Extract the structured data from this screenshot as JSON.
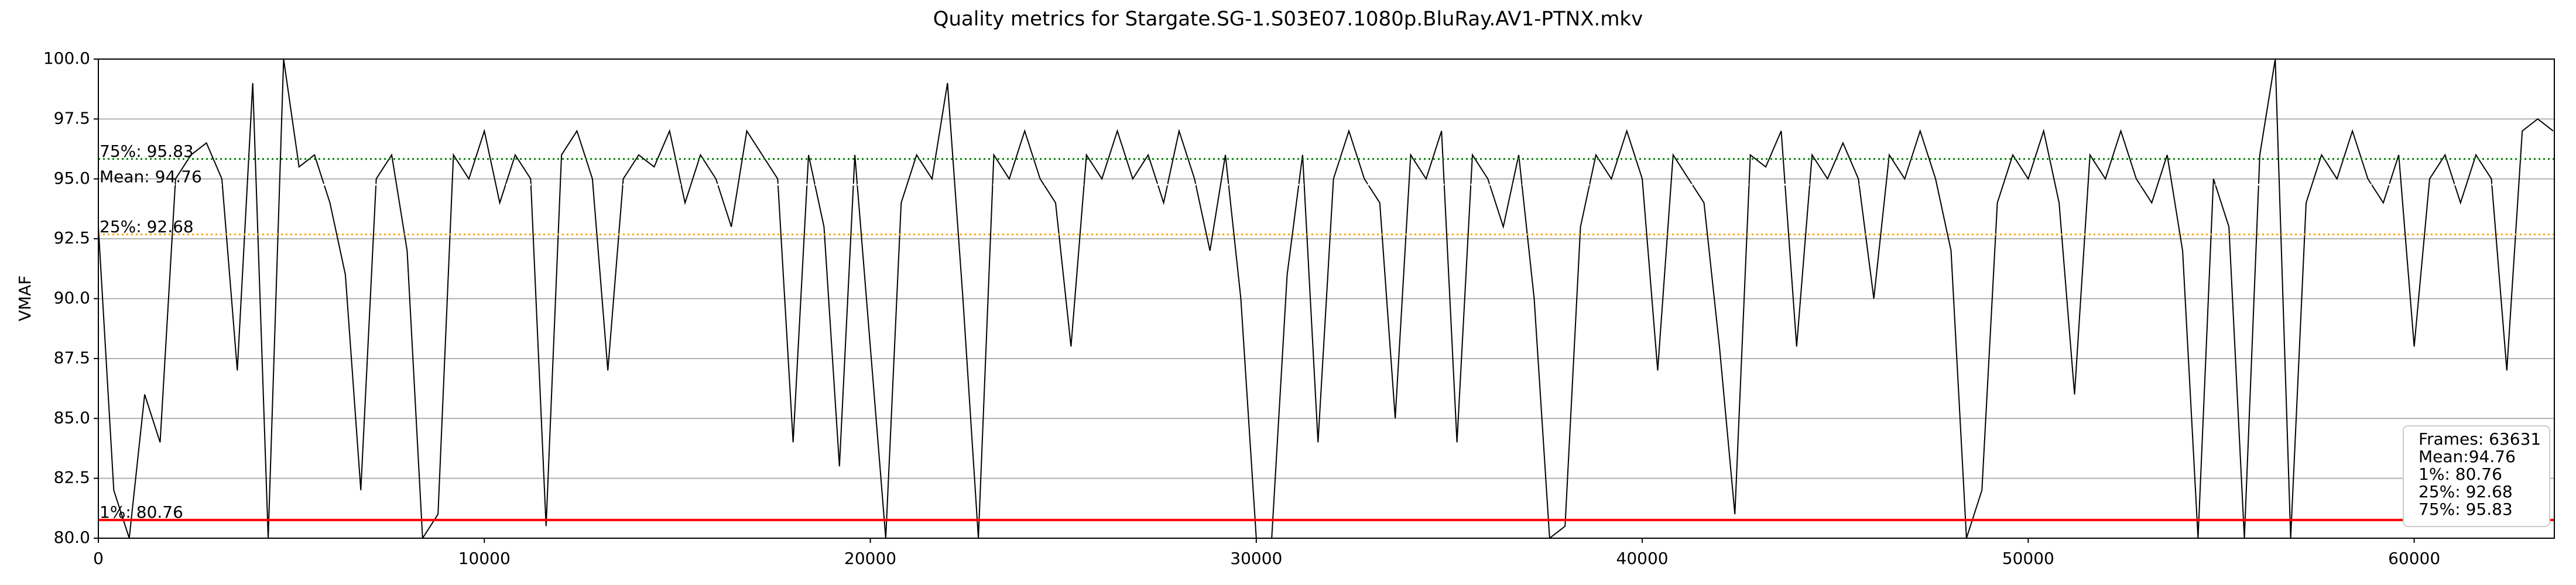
{
  "chart_data": {
    "type": "line",
    "title": "Quality metrics for Stargate.SG-1.S03E07.1080p.BluRay.AV1-PTNX.mkv",
    "y_label": "VMAF",
    "x": [
      0,
      400,
      800,
      1200,
      1600,
      2000,
      2400,
      2800,
      3200,
      3600,
      4000,
      4400,
      4800,
      5200,
      5600,
      6000,
      6400,
      6800,
      7200,
      7600,
      8000,
      8400,
      8800,
      9200,
      9600,
      10000,
      10400,
      10800,
      11200,
      11600,
      12000,
      12400,
      12800,
      13200,
      13600,
      14000,
      14400,
      14800,
      15200,
      15600,
      16000,
      16400,
      16800,
      17200,
      17600,
      18000,
      18400,
      18800,
      19200,
      19600,
      20000,
      20400,
      20800,
      21200,
      21600,
      22000,
      22400,
      22800,
      23200,
      23600,
      24000,
      24400,
      24800,
      25200,
      25600,
      26000,
      26400,
      26800,
      27200,
      27600,
      28000,
      28400,
      28800,
      29200,
      29600,
      30000,
      30400,
      30800,
      31200,
      31600,
      32000,
      32400,
      32800,
      33200,
      33600,
      34000,
      34400,
      34800,
      35200,
      35600,
      36000,
      36400,
      36800,
      37200,
      37600,
      38000,
      38400,
      38800,
      39200,
      39600,
      40000,
      40400,
      40800,
      41200,
      41600,
      42000,
      42400,
      42800,
      43200,
      43600,
      44000,
      44400,
      44800,
      45200,
      45600,
      46000,
      46400,
      46800,
      47200,
      47600,
      48000,
      48400,
      48800,
      49200,
      49600,
      50000,
      50400,
      50800,
      51200,
      51600,
      52000,
      52400,
      52800,
      53200,
      53600,
      54000,
      54400,
      54800,
      55200,
      55600,
      56000,
      56400,
      56800,
      57200,
      57600,
      58000,
      58400,
      58800,
      59200,
      59600,
      60000,
      60400,
      60800,
      61200,
      61600,
      62000,
      62400,
      62800,
      63200,
      63600
    ],
    "series": [
      {
        "name": "VMAF",
        "color": "#000000",
        "values": [
          93,
          82,
          80,
          86,
          84,
          95,
          96,
          96.5,
          95,
          87,
          99,
          80,
          100,
          95.5,
          96,
          94,
          91,
          82,
          95,
          96,
          92,
          80,
          81,
          96,
          95,
          97,
          94,
          96,
          95,
          80.5,
          96,
          97,
          95,
          87,
          95,
          96,
          95.5,
          97,
          94,
          96,
          95,
          93,
          97,
          96,
          95,
          84,
          96,
          93,
          83,
          96,
          88,
          80,
          94,
          96,
          95,
          99,
          90,
          80,
          96,
          95,
          97,
          95,
          94,
          88,
          96,
          95,
          97,
          95,
          96,
          94,
          97,
          95,
          92,
          96,
          90,
          80,
          80,
          91,
          96,
          84,
          95,
          97,
          95,
          94,
          85,
          96,
          95,
          97,
          84,
          96,
          95,
          93,
          96,
          90,
          80,
          80.5,
          93,
          96,
          95,
          97,
          95,
          87,
          96,
          95,
          94,
          88,
          81,
          96,
          95.5,
          97,
          88,
          96,
          95,
          96.5,
          95,
          90,
          96,
          95,
          97,
          95,
          92,
          80,
          82,
          94,
          96,
          95,
          97,
          94,
          86,
          96,
          95,
          97,
          95,
          94,
          96,
          92,
          80,
          95,
          93,
          80,
          96,
          100,
          80,
          94,
          96,
          95,
          97,
          95,
          94,
          96,
          88,
          95,
          96,
          94,
          96,
          95,
          87,
          97,
          97.5,
          97
        ]
      }
    ],
    "xlim": [
      0,
      63631
    ],
    "xticks": [
      0,
      10000,
      20000,
      30000,
      40000,
      50000,
      60000
    ],
    "ylim": [
      80,
      100
    ],
    "yticks": [
      {
        "value": 80,
        "label": "80.0"
      },
      {
        "value": 82.5,
        "label": "82.5"
      },
      {
        "value": 85,
        "label": "85.0"
      },
      {
        "value": 87.5,
        "label": "87.5"
      },
      {
        "value": 90,
        "label": "90.0"
      },
      {
        "value": 92.5,
        "label": "92.5"
      },
      {
        "value": 95,
        "label": "95.0"
      },
      {
        "value": 97.5,
        "label": "97.5"
      },
      {
        "value": 100,
        "label": "100.0"
      }
    ],
    "grid": true,
    "hlines": [
      {
        "value": 80.76,
        "label": "1%: 80.76",
        "color": "#ff0000",
        "style": "solid"
      },
      {
        "value": 92.68,
        "label": "25%: 92.68",
        "color": "#ffa500",
        "style": "dotted"
      },
      {
        "value": 94.76,
        "label": "Mean: 94.76",
        "color": "#ffffff",
        "style": "dotted"
      },
      {
        "value": 95.83,
        "label": "75%: 95.83",
        "color": "#008000",
        "style": "dotted"
      }
    ],
    "stats_box": [
      "Frames: 63631",
      "Mean:94.76",
      "1%: 80.76",
      "25%: 92.68",
      "75%: 95.83"
    ]
  }
}
